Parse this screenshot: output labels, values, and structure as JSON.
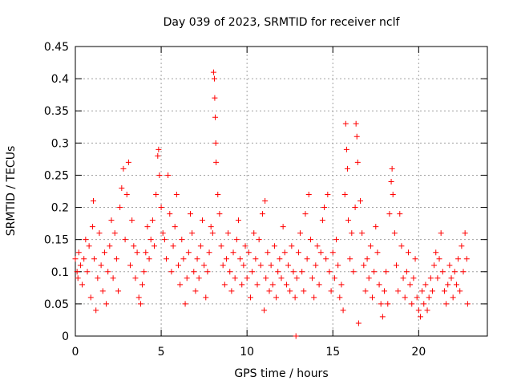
{
  "chart_data": {
    "type": "scatter",
    "title": "Day 039 of 2023, SRMTID for receiver nclf",
    "xlabel": "GPS time / hours",
    "ylabel": "SRMTID / TECUs",
    "xlim": [
      0,
      24
    ],
    "ylim": [
      0,
      0.45
    ],
    "x_ticks": [
      0,
      5,
      10,
      15,
      20
    ],
    "x_tick_labels": [
      "0",
      "5",
      "10",
      "15",
      "20"
    ],
    "y_ticks": [
      0,
      0.05,
      0.1,
      0.15,
      0.2,
      0.25,
      0.3,
      0.35,
      0.4,
      0.45
    ],
    "y_tick_labels": [
      "0",
      "0.05",
      "0.1",
      "0.15",
      "0.2",
      "0.25",
      "0.3",
      "0.35",
      "0.4",
      "0.45"
    ],
    "grid": true,
    "marker": "+",
    "marker_color": "#ff0000",
    "series": [
      {
        "points": [
          [
            0.0,
            0.12
          ],
          [
            0.1,
            0.1
          ],
          [
            0.15,
            0.09
          ],
          [
            0.2,
            0.13
          ],
          [
            0.3,
            0.11
          ],
          [
            0.4,
            0.08
          ],
          [
            0.5,
            0.12
          ],
          [
            0.6,
            0.15
          ],
          [
            0.7,
            0.1
          ],
          [
            0.8,
            0.14
          ],
          [
            0.9,
            0.06
          ],
          [
            1.0,
            0.17
          ],
          [
            1.05,
            0.21
          ],
          [
            1.1,
            0.12
          ],
          [
            1.2,
            0.04
          ],
          [
            1.3,
            0.09
          ],
          [
            1.4,
            0.16
          ],
          [
            1.5,
            0.11
          ],
          [
            1.6,
            0.07
          ],
          [
            1.7,
            0.13
          ],
          [
            1.8,
            0.05
          ],
          [
            1.9,
            0.1
          ],
          [
            2.0,
            0.14
          ],
          [
            2.1,
            0.18
          ],
          [
            2.2,
            0.09
          ],
          [
            2.3,
            0.16
          ],
          [
            2.4,
            0.12
          ],
          [
            2.5,
            0.07
          ],
          [
            2.6,
            0.2
          ],
          [
            2.7,
            0.23
          ],
          [
            2.8,
            0.26
          ],
          [
            2.9,
            0.15
          ],
          [
            3.0,
            0.22
          ],
          [
            3.1,
            0.27
          ],
          [
            3.2,
            0.11
          ],
          [
            3.3,
            0.18
          ],
          [
            3.4,
            0.14
          ],
          [
            3.5,
            0.09
          ],
          [
            3.6,
            0.13
          ],
          [
            3.7,
            0.06
          ],
          [
            3.8,
            0.05
          ],
          [
            3.9,
            0.08
          ],
          [
            4.0,
            0.1
          ],
          [
            4.1,
            0.13
          ],
          [
            4.2,
            0.17
          ],
          [
            4.3,
            0.12
          ],
          [
            4.4,
            0.15
          ],
          [
            4.5,
            0.18
          ],
          [
            4.6,
            0.14
          ],
          [
            4.7,
            0.22
          ],
          [
            4.8,
            0.28
          ],
          [
            4.85,
            0.29
          ],
          [
            4.9,
            0.25
          ],
          [
            5.0,
            0.2
          ],
          [
            5.1,
            0.16
          ],
          [
            5.2,
            0.15
          ],
          [
            5.3,
            0.12
          ],
          [
            5.4,
            0.25
          ],
          [
            5.5,
            0.19
          ],
          [
            5.6,
            0.1
          ],
          [
            5.7,
            0.14
          ],
          [
            5.8,
            0.17
          ],
          [
            5.9,
            0.22
          ],
          [
            6.0,
            0.11
          ],
          [
            6.1,
            0.08
          ],
          [
            6.2,
            0.15
          ],
          [
            6.3,
            0.12
          ],
          [
            6.4,
            0.05
          ],
          [
            6.5,
            0.09
          ],
          [
            6.6,
            0.13
          ],
          [
            6.7,
            0.19
          ],
          [
            6.8,
            0.16
          ],
          [
            6.9,
            0.1
          ],
          [
            7.0,
            0.07
          ],
          [
            7.1,
            0.12
          ],
          [
            7.2,
            0.09
          ],
          [
            7.3,
            0.14
          ],
          [
            7.4,
            0.18
          ],
          [
            7.5,
            0.11
          ],
          [
            7.6,
            0.06
          ],
          [
            7.7,
            0.1
          ],
          [
            7.8,
            0.13
          ],
          [
            7.9,
            0.17
          ],
          [
            8.0,
            0.16
          ],
          [
            8.05,
            0.41
          ],
          [
            8.1,
            0.4
          ],
          [
            8.12,
            0.37
          ],
          [
            8.15,
            0.34
          ],
          [
            8.18,
            0.3
          ],
          [
            8.2,
            0.27
          ],
          [
            8.3,
            0.22
          ],
          [
            8.4,
            0.19
          ],
          [
            8.5,
            0.14
          ],
          [
            8.6,
            0.11
          ],
          [
            8.7,
            0.08
          ],
          [
            8.8,
            0.12
          ],
          [
            8.9,
            0.16
          ],
          [
            9.0,
            0.1
          ],
          [
            9.1,
            0.07
          ],
          [
            9.2,
            0.13
          ],
          [
            9.3,
            0.09
          ],
          [
            9.4,
            0.15
          ],
          [
            9.5,
            0.18
          ],
          [
            9.6,
            0.12
          ],
          [
            9.7,
            0.08
          ],
          [
            9.8,
            0.11
          ],
          [
            9.9,
            0.14
          ],
          [
            10.0,
            0.09
          ],
          [
            10.1,
            0.13
          ],
          [
            10.2,
            0.06
          ],
          [
            10.3,
            0.1
          ],
          [
            10.4,
            0.16
          ],
          [
            10.5,
            0.12
          ],
          [
            10.6,
            0.08
          ],
          [
            10.7,
            0.15
          ],
          [
            10.8,
            0.11
          ],
          [
            10.9,
            0.19
          ],
          [
            11.0,
            0.04
          ],
          [
            11.05,
            0.21
          ],
          [
            11.1,
            0.09
          ],
          [
            11.2,
            0.13
          ],
          [
            11.3,
            0.07
          ],
          [
            11.4,
            0.11
          ],
          [
            11.5,
            0.08
          ],
          [
            11.6,
            0.14
          ],
          [
            11.7,
            0.06
          ],
          [
            11.8,
            0.1
          ],
          [
            11.9,
            0.12
          ],
          [
            12.0,
            0.09
          ],
          [
            12.1,
            0.17
          ],
          [
            12.2,
            0.13
          ],
          [
            12.3,
            0.08
          ],
          [
            12.4,
            0.11
          ],
          [
            12.5,
            0.07
          ],
          [
            12.6,
            0.14
          ],
          [
            12.7,
            0.1
          ],
          [
            12.8,
            0.06
          ],
          [
            12.85,
            0.0
          ],
          [
            12.9,
            0.09
          ],
          [
            13.0,
            0.13
          ],
          [
            13.1,
            0.16
          ],
          [
            13.2,
            0.1
          ],
          [
            13.3,
            0.07
          ],
          [
            13.4,
            0.19
          ],
          [
            13.5,
            0.12
          ],
          [
            13.6,
            0.22
          ],
          [
            13.7,
            0.15
          ],
          [
            13.8,
            0.09
          ],
          [
            13.9,
            0.06
          ],
          [
            14.0,
            0.11
          ],
          [
            14.1,
            0.14
          ],
          [
            14.2,
            0.08
          ],
          [
            14.3,
            0.13
          ],
          [
            14.4,
            0.18
          ],
          [
            14.5,
            0.2
          ],
          [
            14.6,
            0.12
          ],
          [
            14.7,
            0.22
          ],
          [
            14.8,
            0.1
          ],
          [
            14.9,
            0.07
          ],
          [
            15.0,
            0.13
          ],
          [
            15.1,
            0.09
          ],
          [
            15.2,
            0.15
          ],
          [
            15.3,
            0.11
          ],
          [
            15.4,
            0.06
          ],
          [
            15.5,
            0.08
          ],
          [
            15.6,
            0.04
          ],
          [
            15.7,
            0.22
          ],
          [
            15.75,
            0.33
          ],
          [
            15.8,
            0.29
          ],
          [
            15.85,
            0.26
          ],
          [
            15.9,
            0.18
          ],
          [
            16.0,
            0.12
          ],
          [
            16.1,
            0.16
          ],
          [
            16.2,
            0.1
          ],
          [
            16.3,
            0.2
          ],
          [
            16.35,
            0.33
          ],
          [
            16.4,
            0.31
          ],
          [
            16.45,
            0.27
          ],
          [
            16.5,
            0.02
          ],
          [
            16.6,
            0.21
          ],
          [
            16.7,
            0.16
          ],
          [
            16.8,
            0.11
          ],
          [
            16.9,
            0.07
          ],
          [
            17.0,
            0.12
          ],
          [
            17.1,
            0.09
          ],
          [
            17.2,
            0.14
          ],
          [
            17.3,
            0.06
          ],
          [
            17.4,
            0.1
          ],
          [
            17.5,
            0.17
          ],
          [
            17.6,
            0.13
          ],
          [
            17.7,
            0.08
          ],
          [
            17.8,
            0.05
          ],
          [
            17.9,
            0.03
          ],
          [
            18.0,
            0.07
          ],
          [
            18.1,
            0.1
          ],
          [
            18.2,
            0.05
          ],
          [
            18.3,
            0.19
          ],
          [
            18.4,
            0.24
          ],
          [
            18.45,
            0.26
          ],
          [
            18.5,
            0.22
          ],
          [
            18.6,
            0.16
          ],
          [
            18.7,
            0.11
          ],
          [
            18.8,
            0.07
          ],
          [
            18.9,
            0.19
          ],
          [
            19.0,
            0.14
          ],
          [
            19.1,
            0.09
          ],
          [
            19.2,
            0.06
          ],
          [
            19.3,
            0.1
          ],
          [
            19.4,
            0.13
          ],
          [
            19.5,
            0.08
          ],
          [
            19.6,
            0.05
          ],
          [
            19.7,
            0.09
          ],
          [
            19.8,
            0.12
          ],
          [
            19.9,
            0.06
          ],
          [
            20.0,
            0.04
          ],
          [
            20.1,
            0.03
          ],
          [
            20.2,
            0.07
          ],
          [
            20.3,
            0.05
          ],
          [
            20.4,
            0.08
          ],
          [
            20.5,
            0.04
          ],
          [
            20.6,
            0.06
          ],
          [
            20.7,
            0.09
          ],
          [
            20.8,
            0.07
          ],
          [
            20.9,
            0.11
          ],
          [
            21.0,
            0.13
          ],
          [
            21.1,
            0.09
          ],
          [
            21.2,
            0.12
          ],
          [
            21.3,
            0.16
          ],
          [
            21.4,
            0.1
          ],
          [
            21.5,
            0.07
          ],
          [
            21.6,
            0.05
          ],
          [
            21.7,
            0.08
          ],
          [
            21.8,
            0.11
          ],
          [
            21.9,
            0.09
          ],
          [
            22.0,
            0.06
          ],
          [
            22.1,
            0.1
          ],
          [
            22.2,
            0.08
          ],
          [
            22.3,
            0.12
          ],
          [
            22.4,
            0.07
          ],
          [
            22.5,
            0.14
          ],
          [
            22.6,
            0.1
          ],
          [
            22.7,
            0.16
          ],
          [
            22.8,
            0.12
          ],
          [
            22.85,
            0.05
          ]
        ]
      }
    ]
  }
}
